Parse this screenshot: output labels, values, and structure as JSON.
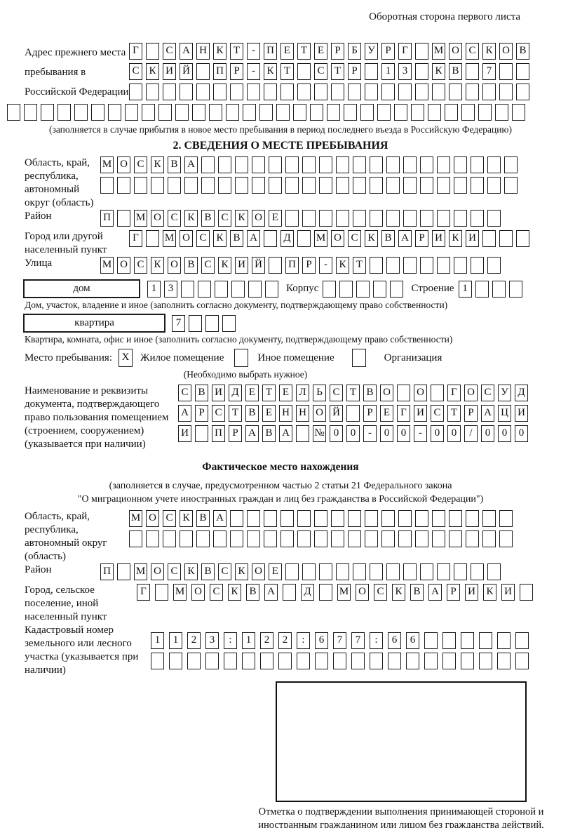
{
  "page": {
    "header_note": "Оборотная сторона первого листа"
  },
  "prev_address": {
    "label": "Адрес прежнего места пребывания в Российской Федерации",
    "rows": [
      {
        "text": "Г САНКТ-ПЕТЕРБУРГ МОСКОВ",
        "len": 24
      },
      {
        "text": "СКИЙ ПР-КТ СТР 13 КВ 7",
        "len": 24
      },
      {
        "text": "",
        "len": 24
      }
    ],
    "overflow_row": {
      "text": "",
      "len": 31
    },
    "caption": "(заполняется в случае прибытия в новое место пребывания в период последнего въезда в Российскую Федерацию)"
  },
  "section2": {
    "title": "2. СВЕДЕНИЯ О МЕСТЕ ПРЕБЫВАНИЯ",
    "oblast": {
      "label": "Область, край, республика, автономный округ (область)",
      "rows": [
        {
          "text": "МОСКВА",
          "len": 25
        },
        {
          "text": "",
          "len": 25
        }
      ]
    },
    "raion": {
      "label": "Район",
      "row": {
        "text": "П МОСКВСКОЕ",
        "len": 24
      }
    },
    "gorod": {
      "label": "Город или другой населенный пункт",
      "row": {
        "text": "Г МОСКВА Д МОСКВАРИКИ",
        "len": 24
      }
    },
    "ulitsa": {
      "label": "Улица",
      "row": {
        "text": "МОСКОВСКИЙ ПР-КТ",
        "len": 24
      }
    },
    "dom": {
      "box_label": "дом",
      "cells": {
        "text": "13",
        "len": 8
      },
      "korpus_label": "Корпус",
      "korpus_cells": {
        "text": "",
        "len": 5
      },
      "stroenie_label": "Строение",
      "stroenie_cells": {
        "text": "1",
        "len": 4
      }
    },
    "dom_caption": "Дом, участок, владение и иное (заполнить согласно документу, подтверждающему право собственности)",
    "kvartira": {
      "box_label": "квартира",
      "cells": {
        "text": "7",
        "len": 4
      }
    },
    "kvartira_caption": "Квартира, комната, офис и иное (заполнить согласно документу, подтверждающему право собственности)",
    "mesto": {
      "label": "Место пребывания:",
      "options": [
        {
          "label": "Жилое помещение",
          "mark": "X"
        },
        {
          "label": "Иное помещение",
          "mark": ""
        },
        {
          "label": "Организация",
          "mark": ""
        }
      ],
      "note": "(Необходимо выбрать нужное)"
    },
    "doc": {
      "label": "Наименование и реквизиты документа, подтверждающего право пользования помещением (строением, сооружением) (указывается при наличии)",
      "rows": [
        {
          "text": "СВИДЕТЕЛЬСТВО О ГОСУД",
          "len": 21
        },
        {
          "text": "АРСТВЕННОЙ РЕГИСТРАЦИ",
          "len": 21
        },
        {
          "text": "И ПРАВА №00-00-00/000",
          "len": 21
        }
      ]
    }
  },
  "fact": {
    "title": "Фактическое место нахождения",
    "caption_line1": "(заполняется в случае, предусмотренном частью 2 статьи 21 Федерального закона",
    "caption_line2": "\"О миграционном учете иностранных граждан и лиц без гражданства в Российской Федерации\")",
    "oblast": {
      "label": "Область, край, республика, автономный округ (область)",
      "rows": [
        {
          "text": "МОСКВА",
          "len": 23
        },
        {
          "text": "",
          "len": 23
        }
      ]
    },
    "raion": {
      "label": "Район",
      "row": {
        "text": "П МОСКВСКОЕ",
        "len": 24
      }
    },
    "gorod": {
      "label": "Город, сельское поселение, иной населенный пункт",
      "row": {
        "text": "Г МОСКВА Д МОСКВАРИКИ",
        "len": 22
      }
    },
    "kadastr": {
      "label": "Кадастровый номер земельного или лесного участка (указывается при наличии)",
      "rows": [
        {
          "text": "1123:122:677:66",
          "len": 21
        },
        {
          "text": "",
          "len": 21
        }
      ]
    },
    "stamp_caption": "Отметка о подтверждении выполнения принимающей стороной и иностранным гражданином или лицом без гражданства действий, необходимых для его постановки на учет по месту пребывания"
  }
}
